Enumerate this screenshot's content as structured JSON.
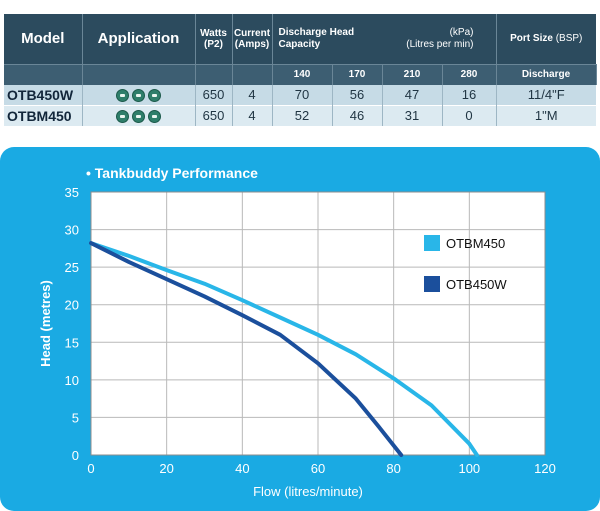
{
  "table": {
    "headers": {
      "model": "Model",
      "application": "Application",
      "watts": "Watts",
      "watts_sub": "(P2)",
      "current": "Current",
      "current_sub": "(Amps)",
      "discharge_line1": "Discharge Head",
      "discharge_line2": "Capacity",
      "discharge_unit1": "(kPa)",
      "discharge_unit2": "(Litres per min)",
      "port": "Port Size",
      "port_unit": "(BSP)",
      "sub_flows": [
        "140",
        "170",
        "210",
        "280"
      ],
      "sub_port": "Discharge"
    },
    "rows": [
      {
        "model": "OTB450W",
        "watts": "650",
        "current": "4",
        "heads": [
          "70",
          "56",
          "47",
          "16"
        ],
        "port": "11/4\"F"
      },
      {
        "model": "OTBM450",
        "watts": "650",
        "current": "4",
        "heads": [
          "52",
          "46",
          "31",
          "0"
        ],
        "port": "1\"M"
      }
    ]
  },
  "chart_title": "• Tankbuddy Performance",
  "colors": {
    "panel": "#1aaae3",
    "OTBM450": "#29b6e8",
    "OTB450W": "#1b4f9c",
    "header": "#2c4b5e"
  },
  "chart_data": {
    "type": "line",
    "xlabel": "Flow (litres/minute)",
    "ylabel": "Head (metres)",
    "xlim": [
      0,
      120
    ],
    "ylim": [
      0,
      35
    ],
    "xticks": [
      0,
      20,
      40,
      60,
      80,
      100,
      120
    ],
    "yticks": [
      0,
      5,
      10,
      15,
      20,
      25,
      30,
      35
    ],
    "grid": true,
    "legend_position": "right",
    "series": [
      {
        "name": "OTBM450",
        "x": [
          0,
          10,
          20,
          30,
          40,
          50,
          60,
          70,
          80,
          90,
          100,
          102
        ],
        "y": [
          28.2,
          26.5,
          24.6,
          22.8,
          20.6,
          18.3,
          16.0,
          13.4,
          10.2,
          6.6,
          1.5,
          0
        ]
      },
      {
        "name": "OTB450W",
        "x": [
          0,
          10,
          20,
          30,
          40,
          50,
          60,
          70,
          76,
          82
        ],
        "y": [
          28.2,
          25.7,
          23.4,
          21.1,
          18.6,
          16.0,
          12.2,
          7.5,
          3.8,
          0
        ]
      }
    ]
  }
}
